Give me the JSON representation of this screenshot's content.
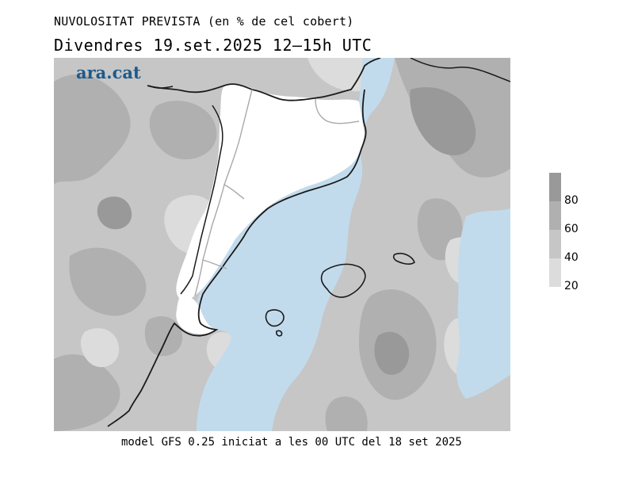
{
  "title": "NUVOLOSITAT PREVISTA (en % de cel cobert)",
  "subtitle": "Divendres  19.set.2025 12—15h UTC",
  "logo": "ara.cat",
  "footer": "model GFS 0.25 iniciat a les 00 UTC del 18 set 2025",
  "legend": {
    "labels": [
      "80",
      "60",
      "40",
      "20"
    ],
    "bins": [
      {
        "range": "80-100",
        "color": "#999999"
      },
      {
        "range": "60-80",
        "color": "#b0b0b0"
      },
      {
        "range": "40-60",
        "color": "#c6c6c6"
      },
      {
        "range": "20-40",
        "color": "#dcdcdc"
      }
    ]
  },
  "colors": {
    "sea": "#c2dbec",
    "clear_land": "#ffffff",
    "coastline": "#1a1a1a",
    "borders": "#a8a8a8",
    "logo": "#1d5a8c"
  }
}
